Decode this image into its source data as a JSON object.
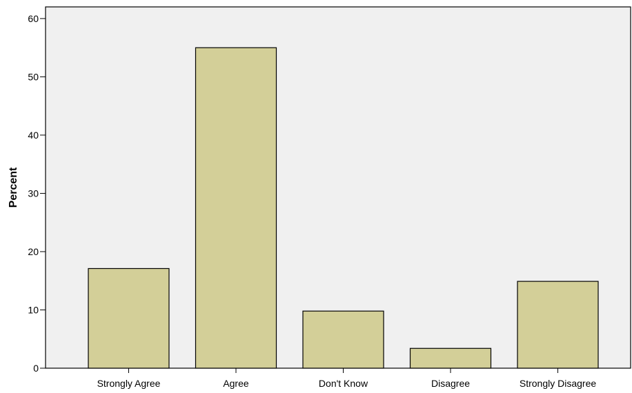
{
  "chart_data": {
    "type": "bar",
    "title": "",
    "xlabel": "",
    "ylabel": "Percent",
    "categories": [
      "Strongly Agree",
      "Agree",
      "Don't Know",
      "Disagree",
      "Strongly Disagree"
    ],
    "values": [
      17.1,
      55.0,
      9.8,
      3.4,
      14.9
    ],
    "ylim": [
      0,
      62
    ],
    "yticks": [
      "0",
      "10",
      "20",
      "30",
      "40",
      "50",
      "60"
    ],
    "grid": false,
    "legend": "none",
    "colors": {
      "plot_background": "#f0f0f0",
      "bar_fill": "#d3cf98",
      "bar_stroke": "#000000",
      "axis": "#000000"
    }
  }
}
